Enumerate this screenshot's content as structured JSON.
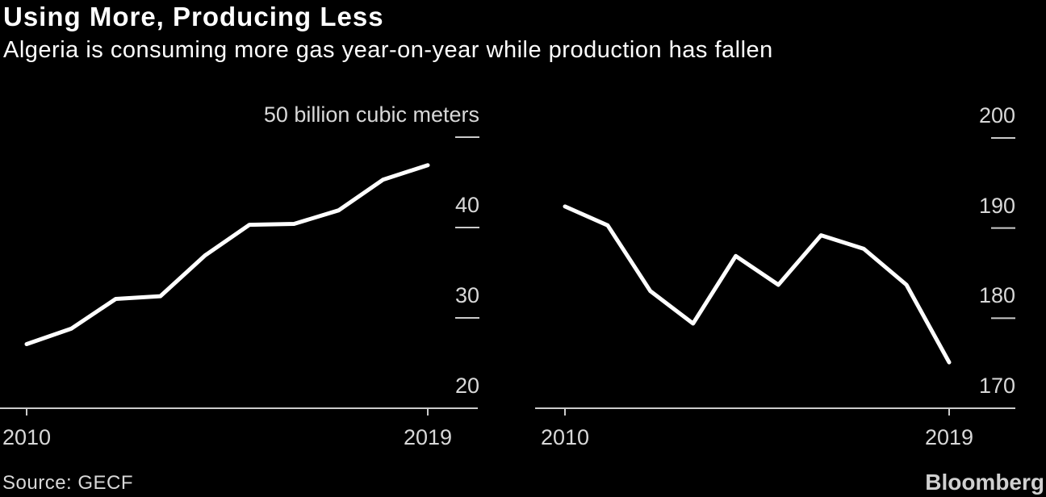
{
  "header": {
    "title": "Using More, Producing Less",
    "subtitle": "Algeria is consuming more gas year-on-year while production has fallen"
  },
  "footer": {
    "source": "Source: GECF",
    "brand": "Bloomberg"
  },
  "colors": {
    "background": "#000000",
    "line": "#ffffff",
    "axis": "#cbcbcb",
    "tick_label": "#d8d8d8",
    "title": "#ffffff"
  },
  "chart_data": [
    {
      "type": "line",
      "name": "gas-consumption",
      "x": [
        2010,
        2011,
        2012,
        2013,
        2014,
        2015,
        2016,
        2017,
        2018,
        2019
      ],
      "values": [
        27.1,
        28.8,
        32.1,
        32.4,
        36.9,
        40.3,
        40.4,
        41.9,
        45.3,
        46.9
      ],
      "ylabel": "billion cubic meters",
      "ylim": [
        20,
        50
      ],
      "grid": false,
      "legend": "none",
      "yticks": [
        {
          "value": 50,
          "label": "50 billion cubic meters"
        },
        {
          "value": 40,
          "label": "40"
        },
        {
          "value": 30,
          "label": "30"
        },
        {
          "value": 20,
          "label": "20"
        }
      ],
      "xticks": [
        {
          "label": "2010"
        },
        {
          "label": "2019"
        }
      ]
    },
    {
      "type": "line",
      "name": "gas-production",
      "x": [
        2010,
        2011,
        2012,
        2013,
        2014,
        2015,
        2016,
        2017,
        2018,
        2019
      ],
      "values": [
        192.4,
        190.3,
        183.0,
        179.4,
        186.9,
        183.7,
        189.2,
        187.7,
        183.7,
        175.1
      ],
      "ylabel": "billion cubic meters",
      "ylim": [
        170,
        200
      ],
      "grid": false,
      "legend": "none",
      "yticks": [
        {
          "value": 200,
          "label": "200"
        },
        {
          "value": 190,
          "label": "190"
        },
        {
          "value": 180,
          "label": "180"
        },
        {
          "value": 170,
          "label": "170"
        }
      ],
      "xticks": [
        {
          "label": "2010"
        },
        {
          "label": "2019"
        }
      ]
    }
  ]
}
